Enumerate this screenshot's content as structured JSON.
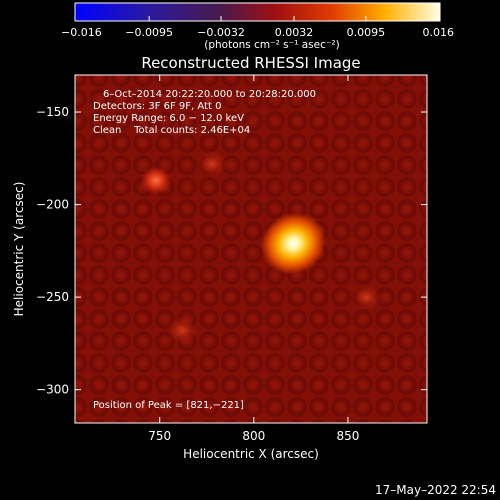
{
  "chart_data": {
    "type": "heatmap",
    "title": "Reconstructed RHESSI Image",
    "xlabel": "Heliocentric X (arcsec)",
    "ylabel": "Heliocentric Y (arcsec)",
    "xlim": [
      705,
      892
    ],
    "ylim": [
      -318,
      -130
    ],
    "x_ticks": [
      750,
      800,
      850
    ],
    "y_ticks": [
      -150,
      -200,
      -250,
      -300
    ],
    "x_tick_labels": [
      "750",
      "800",
      "850"
    ],
    "y_tick_labels": [
      "−150",
      "−200",
      "−250",
      "−300"
    ],
    "colorbar": {
      "min": -0.016,
      "max": 0.016,
      "tick_values": [
        -0.016,
        -0.0095,
        -0.0032,
        0.0032,
        0.0095,
        0.016
      ],
      "tick_labels": [
        "−0.016",
        "−0.0095",
        "−0.0032",
        "0.0032",
        "0.0095",
        "0.016"
      ],
      "unit_label": "(photons cm⁻² s⁻¹ asec⁻²)"
    },
    "annotations": {
      "time_range": "6–Oct–2014 20:22:20.000 to 20:28:20.000",
      "detectors": "Detectors: 3F 6F 9F, Att 0",
      "energy": "Energy Range: 6.0 − 12.0 keV",
      "clean": "Clean    Total counts: 2.46E+04",
      "peak": "Position of Peak = [821,−221]"
    },
    "sources": [
      {
        "x": 821,
        "y": -221,
        "value": 0.016
      },
      {
        "x": 748,
        "y": -187,
        "value": 0.0062
      },
      {
        "x": 762,
        "y": -268,
        "value": 0.005
      },
      {
        "x": 778,
        "y": -178,
        "value": 0.0042
      },
      {
        "x": 860,
        "y": -250,
        "value": 0.0036
      }
    ]
  },
  "footer": {
    "timestamp": "17–May–2022 22:54"
  }
}
